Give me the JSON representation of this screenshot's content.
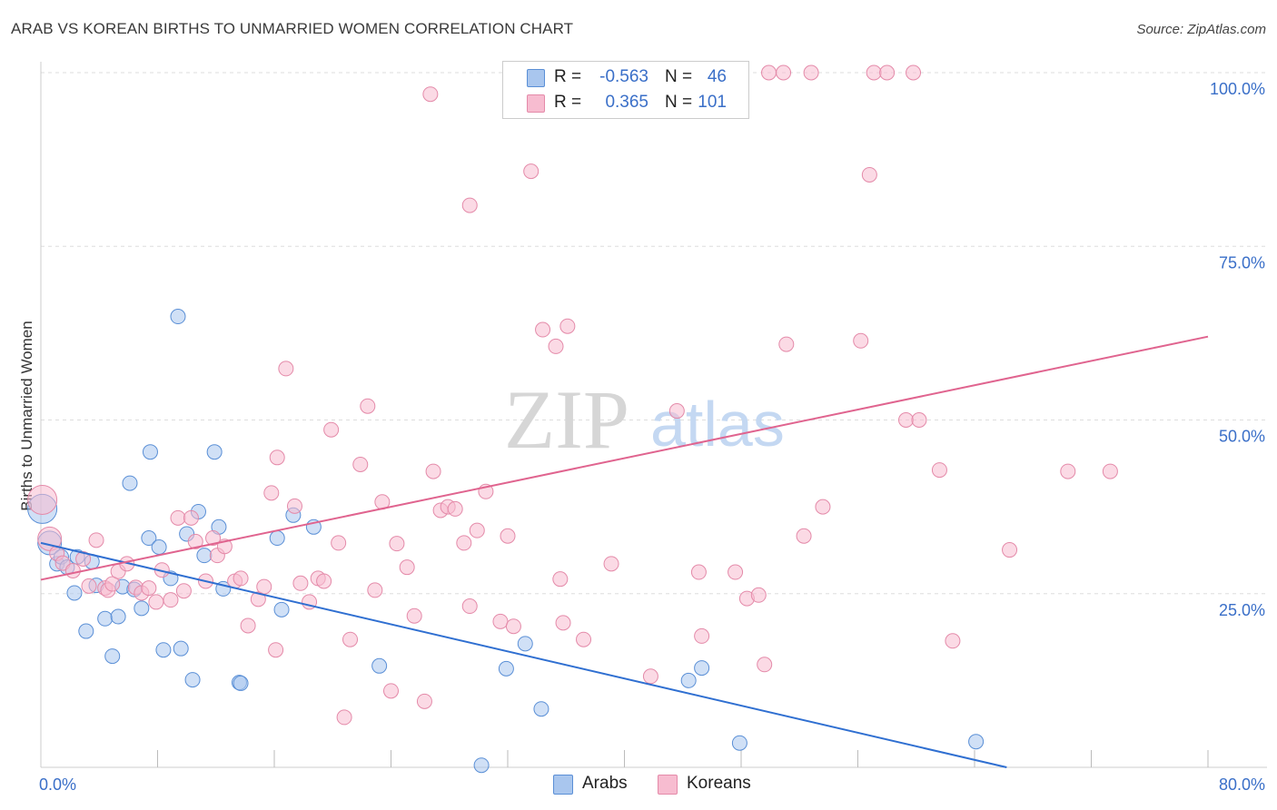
{
  "header": {
    "title": "ARAB VS KOREAN BIRTHS TO UNMARRIED WOMEN CORRELATION CHART",
    "source": "Source: ZipAtlas.com"
  },
  "watermark": {
    "zip": "ZIP",
    "atlas": "atlas"
  },
  "legend": {
    "rows": [
      {
        "r_label": "R =",
        "r_value": "-0.563",
        "n_label": "N =",
        "n_value": "46",
        "color": "#a9c6ee"
      },
      {
        "r_label": "R =",
        "r_value": "0.365",
        "n_label": "N =",
        "n_value": "101",
        "color": "#f7bcd0"
      }
    ]
  },
  "bottom_legend": {
    "items": [
      {
        "label": "Arabs",
        "color": "#a9c6ee"
      },
      {
        "label": "Koreans",
        "color": "#f7bcd0"
      }
    ]
  },
  "colors": {
    "arab_fill": "#a9c6ee",
    "arab_stroke": "#5a8fd6",
    "arab_line": "#2f6fd1",
    "korean_fill": "#f7bcd0",
    "korean_stroke": "#e48aa9",
    "korean_line": "#e0648f",
    "tick_text": "#3a6fc8",
    "grid": "#dddddd"
  },
  "chart_data": {
    "type": "scatter",
    "title": "ARAB VS KOREAN BIRTHS TO UNMARRIED WOMEN CORRELATION CHART",
    "xlabel": "",
    "ylabel": "Births to Unmarried Women",
    "xlim": [
      0,
      80
    ],
    "ylim": [
      0,
      100
    ],
    "x_tick_labels": [
      {
        "value": 0,
        "label": "0.0%"
      },
      {
        "value": 80,
        "label": "80.0%"
      }
    ],
    "x_minor_ticks": [
      8,
      16,
      24,
      32,
      40,
      48,
      56,
      64,
      72,
      80
    ],
    "y_ticks": [
      {
        "value": 25,
        "label": "25.0%"
      },
      {
        "value": 50,
        "label": "50.0%"
      },
      {
        "value": 75,
        "label": "75.0%"
      },
      {
        "value": 100,
        "label": "100.0%"
      }
    ],
    "grid": true,
    "legend_position": "top-center",
    "series": [
      {
        "name": "Arabs",
        "r": -0.563,
        "n": 46,
        "trend": {
          "x": [
            0,
            66.2
          ],
          "y": [
            32.3,
            0
          ]
        },
        "points": [
          [
            0.1,
            37.2
          ],
          [
            0.6,
            32.3
          ],
          [
            1.1,
            29.3
          ],
          [
            1.4,
            30.3
          ],
          [
            1.8,
            28.8
          ],
          [
            2.3,
            25.1
          ],
          [
            2.5,
            30.3
          ],
          [
            3.1,
            19.6
          ],
          [
            3.5,
            29.6
          ],
          [
            3.8,
            26.2
          ],
          [
            4.4,
            21.4
          ],
          [
            4.9,
            16.0
          ],
          [
            5.3,
            21.7
          ],
          [
            5.6,
            26.0
          ],
          [
            6.1,
            40.9
          ],
          [
            6.4,
            25.6
          ],
          [
            6.9,
            22.9
          ],
          [
            7.4,
            33.0
          ],
          [
            7.5,
            45.4
          ],
          [
            8.1,
            31.7
          ],
          [
            8.4,
            16.9
          ],
          [
            8.9,
            27.2
          ],
          [
            9.4,
            64.9
          ],
          [
            9.6,
            17.1
          ],
          [
            10.0,
            33.6
          ],
          [
            10.4,
            12.6
          ],
          [
            10.8,
            36.8
          ],
          [
            11.2,
            30.5
          ],
          [
            11.9,
            45.4
          ],
          [
            12.2,
            34.6
          ],
          [
            12.5,
            25.7
          ],
          [
            13.6,
            12.2
          ],
          [
            13.7,
            12.1
          ],
          [
            16.2,
            33.0
          ],
          [
            16.5,
            22.7
          ],
          [
            17.3,
            36.3
          ],
          [
            18.7,
            34.6
          ],
          [
            23.2,
            14.6
          ],
          [
            30.2,
            0.3
          ],
          [
            31.9,
            14.2
          ],
          [
            33.2,
            17.8
          ],
          [
            34.3,
            8.4
          ],
          [
            44.4,
            12.5
          ],
          [
            45.3,
            14.3
          ],
          [
            47.9,
            3.5
          ],
          [
            64.1,
            3.7
          ]
        ]
      },
      {
        "name": "Koreans",
        "r": 0.365,
        "n": 101,
        "trend": {
          "x": [
            0,
            80
          ],
          "y": [
            27.0,
            62.0
          ]
        },
        "points": [
          [
            0.1,
            38.5
          ],
          [
            0.6,
            32.9
          ],
          [
            1.1,
            30.8
          ],
          [
            1.5,
            29.4
          ],
          [
            2.2,
            28.3
          ],
          [
            2.9,
            30.0
          ],
          [
            3.3,
            26.1
          ],
          [
            3.8,
            32.7
          ],
          [
            4.4,
            25.8
          ],
          [
            4.6,
            25.5
          ],
          [
            4.9,
            26.4
          ],
          [
            5.3,
            28.2
          ],
          [
            5.9,
            29.3
          ],
          [
            6.5,
            25.9
          ],
          [
            6.9,
            25.1
          ],
          [
            7.4,
            25.8
          ],
          [
            7.9,
            23.8
          ],
          [
            8.3,
            28.4
          ],
          [
            8.9,
            24.1
          ],
          [
            9.4,
            35.9
          ],
          [
            9.8,
            25.4
          ],
          [
            10.3,
            35.9
          ],
          [
            10.6,
            32.5
          ],
          [
            11.3,
            26.8
          ],
          [
            11.8,
            33.0
          ],
          [
            12.1,
            30.5
          ],
          [
            12.6,
            31.8
          ],
          [
            13.3,
            26.8
          ],
          [
            13.7,
            27.2
          ],
          [
            14.2,
            20.4
          ],
          [
            14.9,
            24.2
          ],
          [
            15.3,
            26.0
          ],
          [
            15.8,
            39.5
          ],
          [
            16.2,
            44.6
          ],
          [
            16.8,
            57.4
          ],
          [
            17.4,
            37.6
          ],
          [
            17.8,
            26.5
          ],
          [
            18.4,
            23.8
          ],
          [
            19.0,
            27.2
          ],
          [
            19.4,
            26.8
          ],
          [
            19.9,
            48.6
          ],
          [
            20.4,
            32.3
          ],
          [
            21.2,
            18.4
          ],
          [
            21.9,
            43.6
          ],
          [
            22.4,
            52.0
          ],
          [
            22.9,
            25.5
          ],
          [
            23.4,
            38.2
          ],
          [
            24.0,
            11.0
          ],
          [
            24.4,
            32.2
          ],
          [
            25.1,
            28.8
          ],
          [
            25.6,
            21.8
          ],
          [
            26.3,
            9.5
          ],
          [
            26.9,
            42.6
          ],
          [
            27.4,
            37.0
          ],
          [
            27.9,
            37.5
          ],
          [
            28.4,
            37.2
          ],
          [
            29.0,
            32.3
          ],
          [
            29.4,
            23.2
          ],
          [
            29.9,
            34.1
          ],
          [
            30.5,
            39.7
          ],
          [
            31.5,
            21.0
          ],
          [
            32.0,
            33.3
          ],
          [
            32.4,
            20.3
          ],
          [
            33.6,
            85.8
          ],
          [
            34.4,
            63.0
          ],
          [
            35.3,
            60.6
          ],
          [
            35.6,
            27.1
          ],
          [
            35.8,
            20.8
          ],
          [
            36.1,
            63.5
          ],
          [
            37.2,
            18.4
          ],
          [
            39.1,
            29.3
          ],
          [
            41.8,
            13.1
          ],
          [
            43.6,
            51.3
          ],
          [
            45.1,
            28.1
          ],
          [
            45.3,
            18.9
          ],
          [
            47.6,
            28.1
          ],
          [
            48.4,
            24.3
          ],
          [
            49.2,
            24.8
          ],
          [
            49.6,
            14.8
          ],
          [
            51.1,
            60.9
          ],
          [
            52.3,
            33.3
          ],
          [
            52.8,
            100.0
          ],
          [
            53.6,
            37.5
          ],
          [
            56.2,
            61.4
          ],
          [
            56.8,
            85.3
          ],
          [
            57.1,
            100.0
          ],
          [
            58.0,
            100.0
          ],
          [
            59.3,
            50.0
          ],
          [
            60.2,
            50.0
          ],
          [
            61.6,
            42.8
          ],
          [
            62.5,
            18.2
          ],
          [
            66.4,
            31.3
          ],
          [
            70.4,
            42.6
          ],
          [
            73.3,
            42.6
          ],
          [
            26.7,
            96.9
          ],
          [
            29.4,
            80.9
          ],
          [
            49.9,
            100.0
          ],
          [
            50.9,
            100.0
          ],
          [
            59.8,
            100.0
          ],
          [
            16.1,
            16.9
          ],
          [
            20.8,
            7.2
          ]
        ]
      }
    ]
  }
}
